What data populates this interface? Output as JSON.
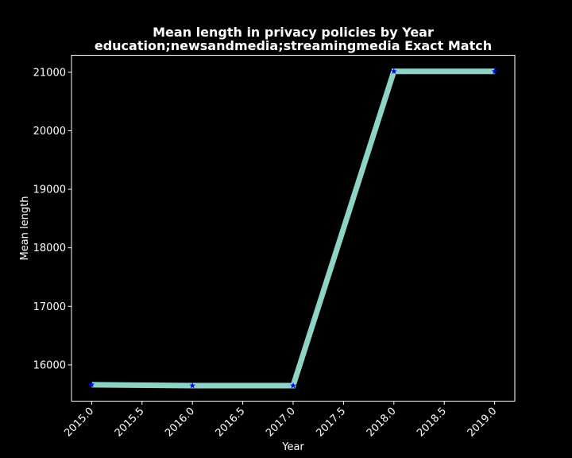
{
  "chart_data": {
    "type": "line",
    "title": "Mean length in privacy policies by Year",
    "subtitle": "education;newsandmedia;streamingmedia Exact Match",
    "xlabel": "Year",
    "ylabel": "Mean length",
    "x": [
      2015,
      2016,
      2017,
      2018,
      2019
    ],
    "series": [
      {
        "values": [
          15660,
          15645,
          15645,
          21015,
          21015
        ]
      }
    ],
    "xlim": [
      2014.8,
      2019.2
    ],
    "ylim": [
      15380,
      21290
    ],
    "xticks": [
      2015.0,
      2015.5,
      2016.0,
      2016.5,
      2017.0,
      2017.5,
      2018.0,
      2018.5,
      2019.0
    ],
    "xtick_labels": [
      "2015.0",
      "2015.5",
      "2016.0",
      "2016.5",
      "2017.0",
      "2017.5",
      "2018.0",
      "2018.5",
      "2019.0"
    ],
    "yticks": [
      16000,
      17000,
      18000,
      19000,
      20000,
      21000
    ],
    "ytick_labels": [
      "16000",
      "17000",
      "18000",
      "19000",
      "20000",
      "21000"
    ],
    "grid": false,
    "legend": "none",
    "colors": {
      "background": "#000000",
      "line": "#8dd3c7",
      "marker": "#0000ff",
      "axes": "#ffffff",
      "text": "#ffffff"
    },
    "marker": "star"
  }
}
